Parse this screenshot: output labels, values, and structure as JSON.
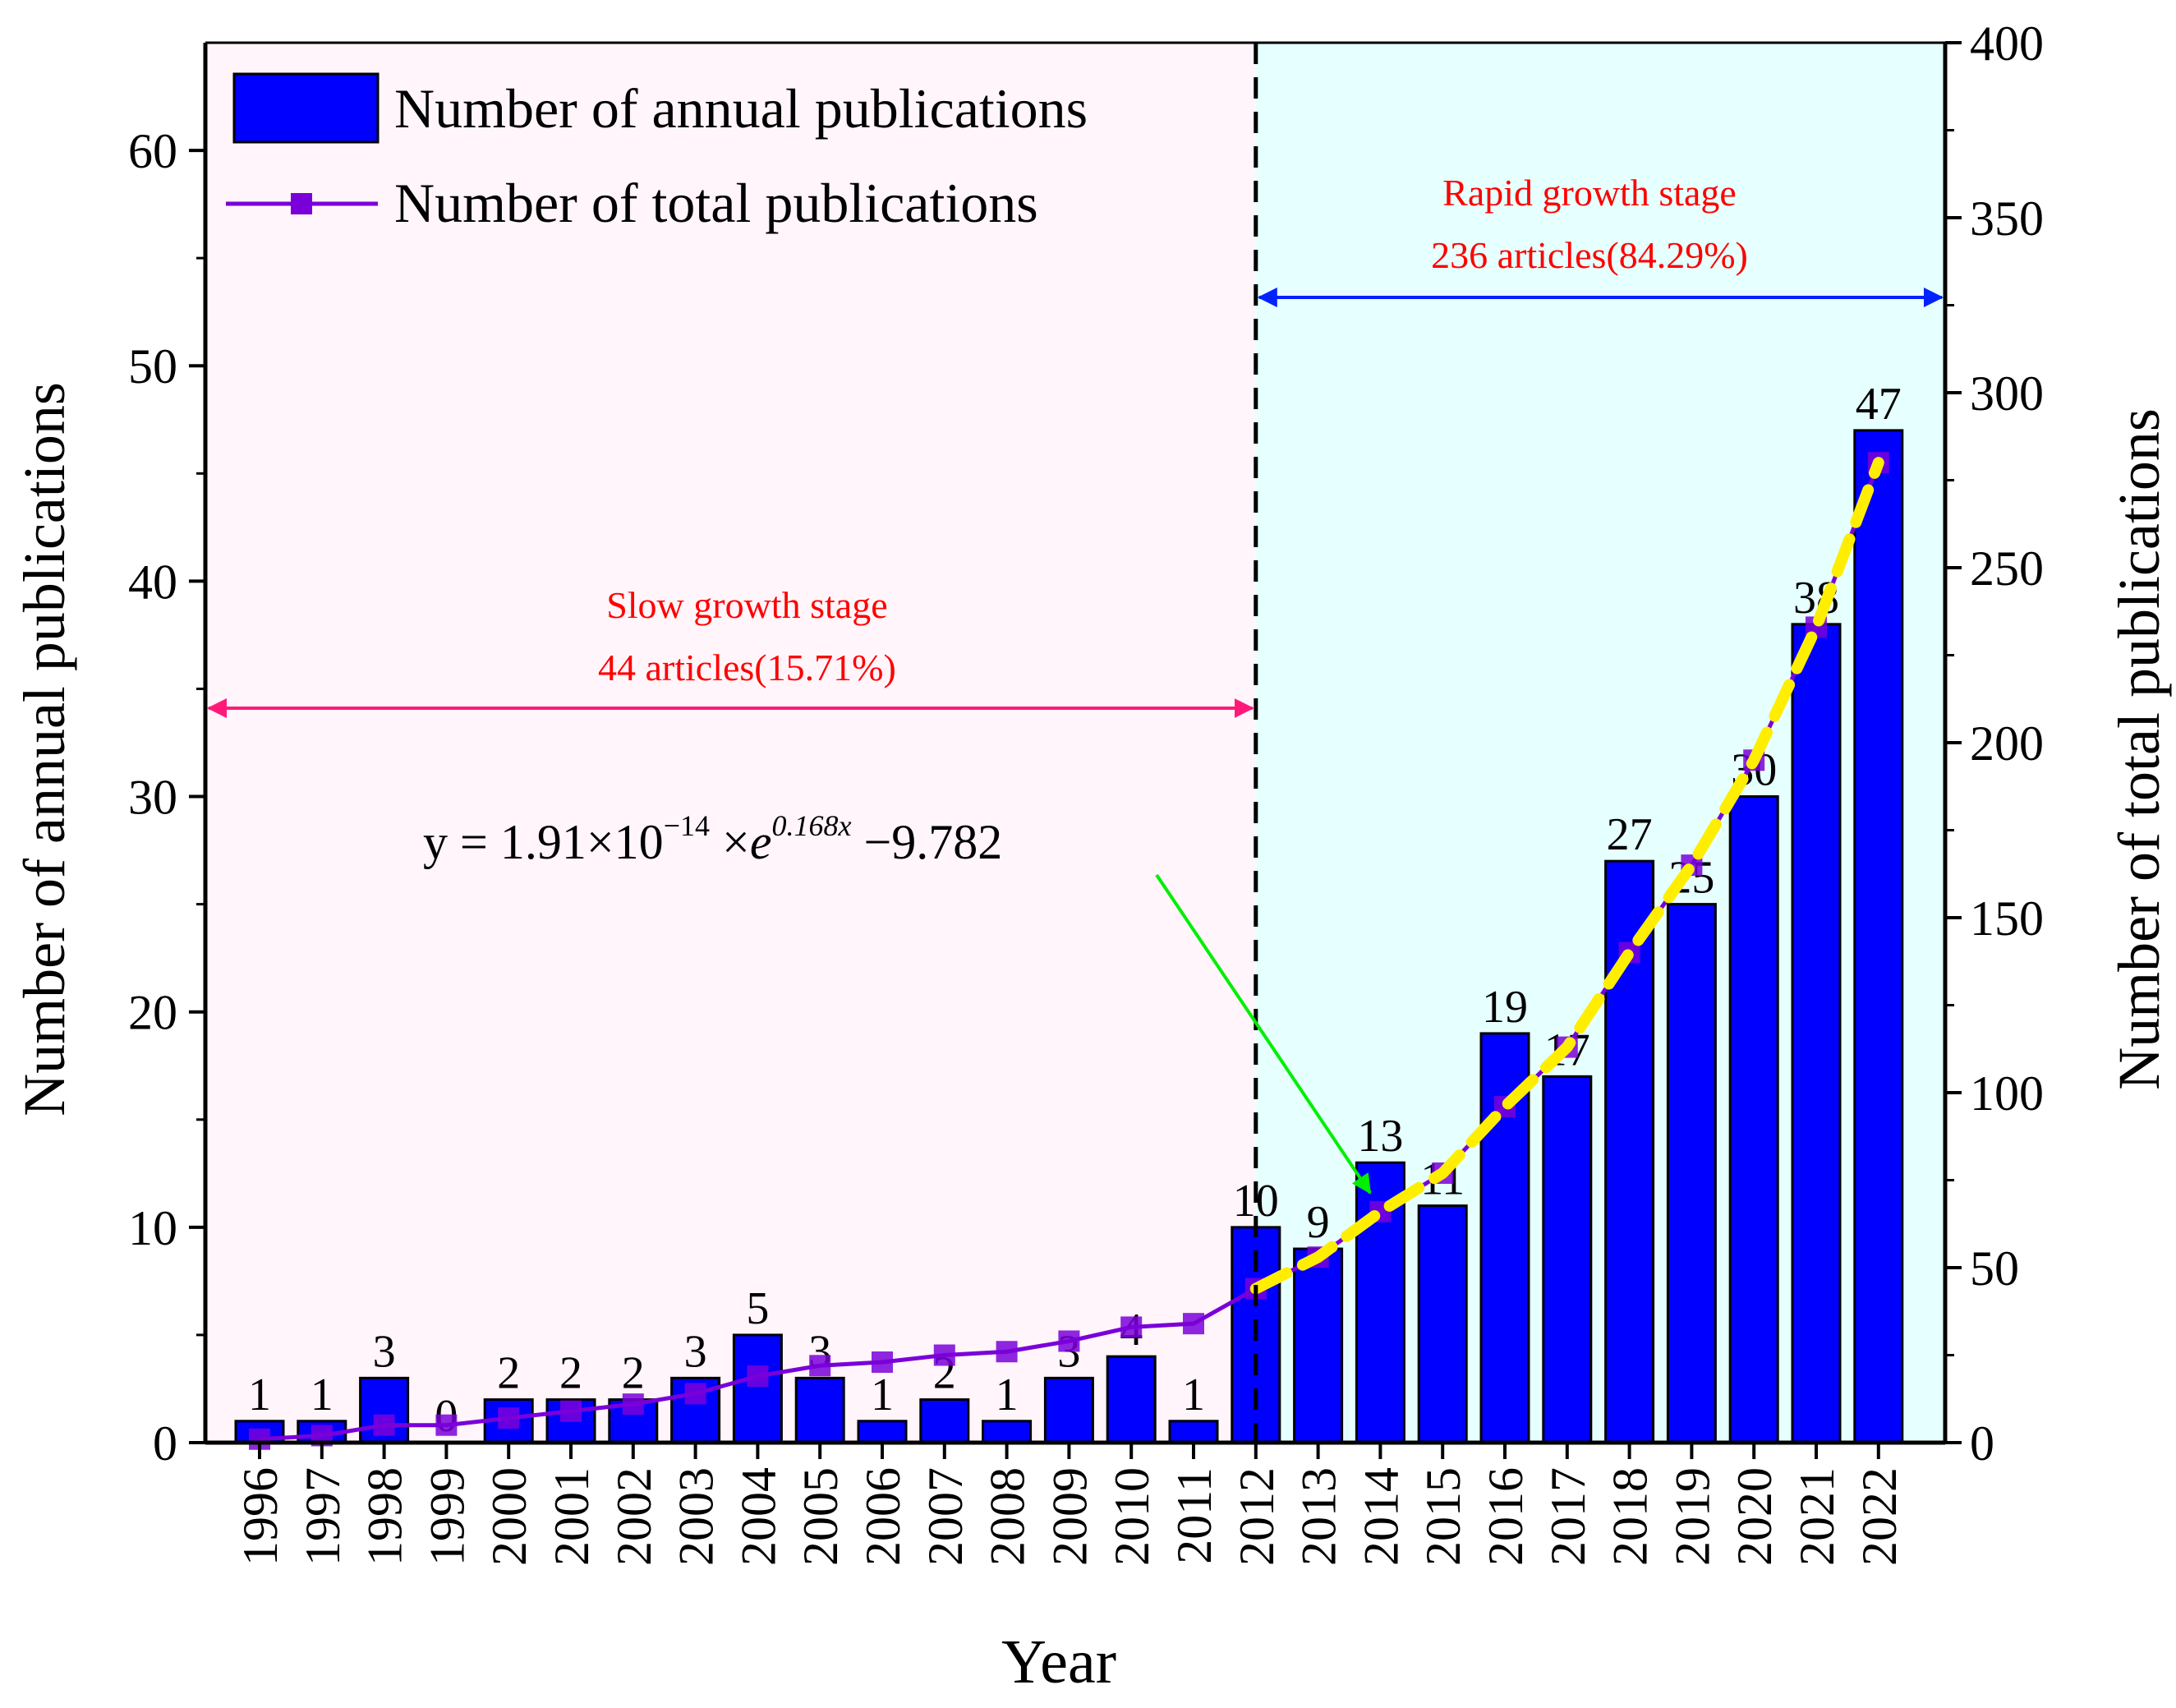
{
  "chart_data": {
    "type": "bar",
    "title": "",
    "xlabel": "Year",
    "ylabel": "Number of annual publications",
    "y2label": "Number of total publications",
    "ylim": [
      0,
      65
    ],
    "y2lim": [
      0,
      400
    ],
    "yticks": [
      "0",
      "10",
      "20",
      "30",
      "40",
      "50",
      "60"
    ],
    "y2ticks": [
      "0",
      "50",
      "100",
      "150",
      "200",
      "250",
      "300",
      "350",
      "400"
    ],
    "categories": [
      "1996",
      "1997",
      "1998",
      "1999",
      "2000",
      "2001",
      "2002",
      "2003",
      "2004",
      "2005",
      "2006",
      "2007",
      "2008",
      "2009",
      "2010",
      "2011",
      "2012",
      "2013",
      "2014",
      "2015",
      "2016",
      "2017",
      "2018",
      "2019",
      "2020",
      "2021",
      "2022"
    ],
    "series": [
      {
        "name": "Number of annual publications",
        "type": "bar",
        "axis": "left",
        "color": "#0000ff",
        "values": [
          1,
          1,
          3,
          0,
          2,
          2,
          2,
          3,
          5,
          3,
          1,
          2,
          1,
          3,
          4,
          1,
          10,
          9,
          13,
          11,
          19,
          17,
          27,
          25,
          30,
          38,
          47
        ],
        "labels": [
          "1",
          "1",
          "3",
          "0",
          "2",
          "2",
          "2",
          "3",
          "5",
          "3",
          "1",
          "2",
          "1",
          "3",
          "4",
          "1",
          "10",
          "9",
          "13",
          "11",
          "19",
          "17",
          "27",
          "25",
          "30",
          "38",
          "47"
        ]
      },
      {
        "name": "Number of total publications",
        "type": "line",
        "axis": "right",
        "color": "#7a00d9",
        "marker": "square",
        "values": [
          1,
          2,
          5,
          5,
          7,
          9,
          11,
          14,
          19,
          22,
          23,
          25,
          26,
          29,
          33,
          34,
          44,
          53,
          66,
          77,
          96,
          113,
          140,
          165,
          195,
          233,
          280
        ]
      }
    ],
    "fit": {
      "color": "#ffee00",
      "from_year": "2012",
      "equation": {
        "lhs": "y = 1.91×10",
        "exp1": "−14",
        "mid": " ×",
        "e": "e",
        "exp2": "0.168x",
        "tail": " −9.782"
      }
    },
    "stages": [
      {
        "name": "Slow growth stage",
        "detail": "44 articles(15.71%)",
        "from": "1996",
        "to": "2012",
        "background": "#fff5fa",
        "arrow_color": "#ff1a7a"
      },
      {
        "name": "Rapid growth stage",
        "detail": "236 articles(84.29%)",
        "from": "2012",
        "to": "2022",
        "background": "#e6ffff",
        "arrow_color": "#0022ff"
      }
    ],
    "label_color": "#ff0000",
    "pointer_color": "#00ee00",
    "legend_position": "top-left"
  }
}
